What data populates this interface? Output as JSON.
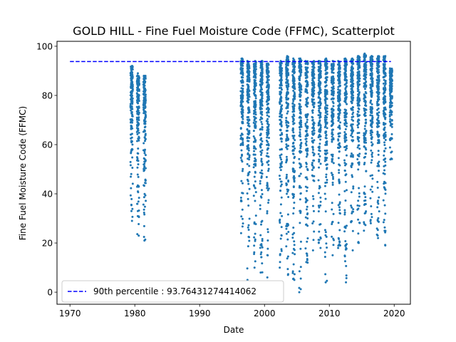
{
  "chart_data": {
    "type": "scatter",
    "title": "GOLD HILL - Fine Fuel Moisture Code (FFMC), Scatterplot",
    "xlabel": "Date",
    "ylabel": "Fine Fuel Moisture Code (FFMC)",
    "xlim": [
      1968.0,
      2022.5
    ],
    "ylim": [
      -4.9,
      102.0
    ],
    "x_ticks": [
      1970,
      1980,
      1990,
      2000,
      2010,
      2020
    ],
    "y_ticks": [
      0,
      20,
      40,
      60,
      80,
      100
    ],
    "series": [
      {
        "marker_color": "#1f77b4",
        "fire_seasons": [
          {
            "year": 1979,
            "min": 29,
            "max": 92
          },
          {
            "year": 1980,
            "min": 23,
            "max": 89
          },
          {
            "year": 1981,
            "min": 21,
            "max": 88
          },
          {
            "year": 1996,
            "min": 24,
            "max": 95
          },
          {
            "year": 1997,
            "min": 5,
            "max": 94
          },
          {
            "year": 1998,
            "min": 10,
            "max": 94
          },
          {
            "year": 1999,
            "min": 8,
            "max": 94
          },
          {
            "year": 2000,
            "min": 6,
            "max": 93
          },
          {
            "year": 2002,
            "min": 10,
            "max": 94
          },
          {
            "year": 2003,
            "min": 7,
            "max": 96
          },
          {
            "year": 2004,
            "min": 5,
            "max": 95
          },
          {
            "year": 2005,
            "min": 0,
            "max": 95
          },
          {
            "year": 2006,
            "min": 12,
            "max": 94
          },
          {
            "year": 2007,
            "min": 17,
            "max": 94
          },
          {
            "year": 2008,
            "min": 18,
            "max": 94
          },
          {
            "year": 2009,
            "min": 4,
            "max": 95
          },
          {
            "year": 2010,
            "min": 15,
            "max": 94
          },
          {
            "year": 2011,
            "min": 18,
            "max": 94
          },
          {
            "year": 2012,
            "min": 4,
            "max": 95
          },
          {
            "year": 2013,
            "min": 17,
            "max": 95
          },
          {
            "year": 2014,
            "min": 20,
            "max": 96
          },
          {
            "year": 2015,
            "min": 25,
            "max": 97
          },
          {
            "year": 2016,
            "min": 28,
            "max": 96
          },
          {
            "year": 2017,
            "min": 22,
            "max": 96
          },
          {
            "year": 2018,
            "min": 19,
            "max": 96
          },
          {
            "year": 2019,
            "min": 54,
            "max": 91
          }
        ]
      },
      {
        "name": "90th percentile : 93.76431274414062",
        "type": "hline",
        "y": 93.76431274414062,
        "x_range": [
          1970,
          2019.5
        ],
        "color": "#0000ff",
        "linestyle": "dashed"
      }
    ],
    "legend": {
      "placement": "lower-left",
      "entries": [
        "90th percentile : 93.76431274414062"
      ]
    }
  }
}
